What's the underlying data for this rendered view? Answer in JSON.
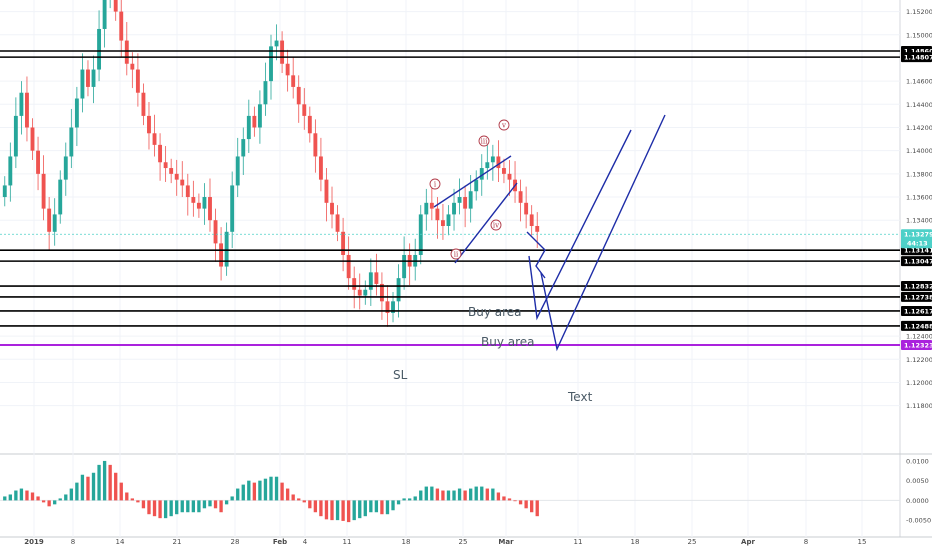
{
  "chart_data": {
    "type": "candlestick",
    "colors": {
      "up": "#26a69a",
      "down": "#ef5350",
      "current_price_tag": "#4dd0c8",
      "stop_loss": "#aa22dd",
      "level_line": "#000000",
      "projection": "#1f2ea8",
      "wave_label": "#b03a48",
      "grid": "#f0f3f8"
    },
    "y_axis": {
      "range": [
        1.114,
        1.153
      ],
      "ticks": [
        "1.15200",
        "1.15000",
        "1.14600",
        "1.14400",
        "1.14200",
        "1.14000",
        "1.13800",
        "1.13600",
        "1.13400",
        "1.12400",
        "1.12200",
        "1.12000",
        "1.11800"
      ]
    },
    "x_axis": {
      "labels": [
        "2019",
        "8",
        "14",
        "21",
        "28",
        "Feb",
        "4",
        "11",
        "18",
        "25",
        "Mar",
        "11",
        "18",
        "25",
        "Apr",
        "8",
        "15"
      ]
    },
    "current_price": {
      "value": "1.13279",
      "countdown": "44:13",
      "price": 1.13279
    },
    "levels": [
      {
        "label": "1.14860",
        "price": 1.1486
      },
      {
        "label": "1.14807",
        "price": 1.14807
      },
      {
        "label": "1.13141",
        "price": 1.13141
      },
      {
        "label": "1.13047",
        "price": 1.13047
      },
      {
        "label": "1.12832",
        "price": 1.12832
      },
      {
        "label": "1.12738",
        "price": 1.12738
      },
      {
        "label": "1.12617",
        "price": 1.12617
      },
      {
        "label": "1.12488",
        "price": 1.12488
      }
    ],
    "stop_loss": {
      "label": "1.12323",
      "price": 1.12323
    },
    "annotations": {
      "buy_area_1": "Buy area",
      "buy_area_2": "Buy area",
      "sl": "SL",
      "text": "Text"
    },
    "wave_labels": [
      "i",
      "ii",
      "iii",
      "iv",
      "v"
    ],
    "oscillator": {
      "ticks": [
        "0.0100",
        "0.0050",
        "0.0000",
        "-0.0050"
      ],
      "range": [
        -0.0075,
        0.0115
      ]
    },
    "closes": [
      1.137,
      1.1395,
      1.143,
      1.145,
      1.142,
      1.14,
      1.138,
      1.135,
      1.133,
      1.1345,
      1.1375,
      1.1395,
      1.142,
      1.1445,
      1.147,
      1.1455,
      1.147,
      1.1505,
      1.1535,
      1.154,
      1.152,
      1.1495,
      1.1475,
      1.147,
      1.145,
      1.143,
      1.1415,
      1.1405,
      1.139,
      1.1385,
      1.138,
      1.1375,
      1.137,
      1.136,
      1.1355,
      1.135,
      1.136,
      1.134,
      1.132,
      1.13,
      1.133,
      1.137,
      1.1395,
      1.141,
      1.143,
      1.142,
      1.144,
      1.146,
      1.149,
      1.1495,
      1.1475,
      1.1465,
      1.1455,
      1.144,
      1.143,
      1.1415,
      1.1395,
      1.1375,
      1.1355,
      1.1345,
      1.133,
      1.131,
      1.129,
      1.128,
      1.1275,
      1.128,
      1.1295,
      1.1285,
      1.127,
      1.126,
      1.127,
      1.129,
      1.131,
      1.13,
      1.131,
      1.1345,
      1.1355,
      1.135,
      1.134,
      1.1335,
      1.1345,
      1.1355,
      1.136,
      1.135,
      1.1365,
      1.1375,
      1.1385,
      1.139,
      1.1395,
      1.1385,
      1.138,
      1.1375,
      1.1365,
      1.1355,
      1.1345,
      1.1335,
      1.133
    ],
    "osc_values": [
      0.001,
      0.0015,
      0.0025,
      0.003,
      0.0025,
      0.002,
      0.001,
      -0.0005,
      -0.0015,
      -0.001,
      0.0005,
      0.0015,
      0.003,
      0.0045,
      0.0065,
      0.006,
      0.007,
      0.009,
      0.01,
      0.009,
      0.007,
      0.0045,
      0.002,
      0.0005,
      -0.0005,
      -0.002,
      -0.0035,
      -0.004,
      -0.0045,
      -0.0045,
      -0.004,
      -0.0035,
      -0.003,
      -0.003,
      -0.003,
      -0.003,
      -0.002,
      -0.0015,
      -0.002,
      -0.003,
      -0.001,
      0.001,
      0.003,
      0.004,
      0.005,
      0.0045,
      0.005,
      0.0055,
      0.006,
      0.006,
      0.0045,
      0.003,
      0.0015,
      0.0005,
      -0.0005,
      -0.002,
      -0.003,
      -0.004,
      -0.0048,
      -0.005,
      -0.005,
      -0.0052,
      -0.0055,
      -0.005,
      -0.0045,
      -0.004,
      -0.003,
      -0.003,
      -0.0035,
      -0.0035,
      -0.0025,
      -0.001,
      0.0005,
      0.0005,
      0.001,
      0.0025,
      0.0035,
      0.0035,
      0.003,
      0.0025,
      0.0025,
      0.0025,
      0.003,
      0.0025,
      0.003,
      0.0035,
      0.0035,
      0.003,
      0.003,
      0.002,
      0.001,
      0.0005,
      0.0,
      -0.001,
      -0.002,
      -0.003,
      -0.004
    ]
  }
}
